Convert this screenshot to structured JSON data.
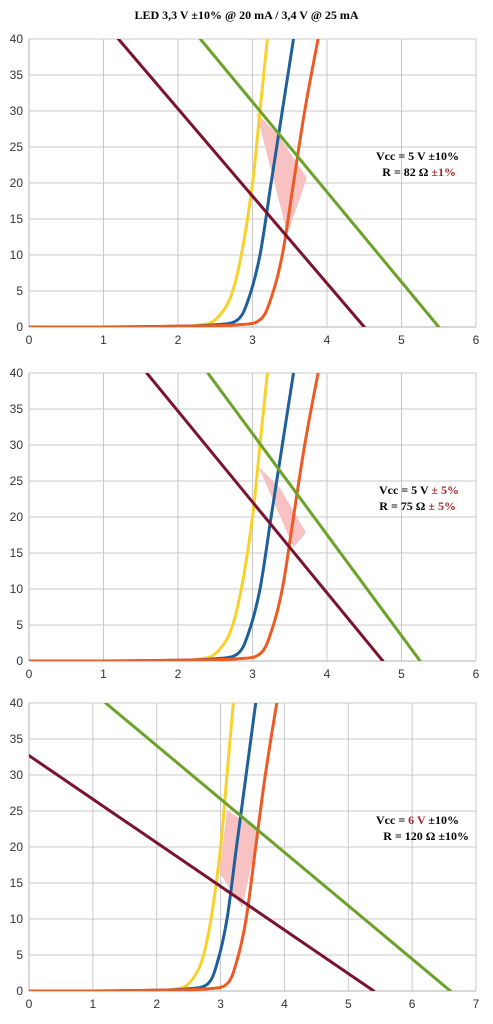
{
  "title": "LED 3,3 V ±10% @ 20 mA  /  3,4 V @ 25 mA",
  "colors": {
    "led_min": "#f7d22a",
    "led_nom": "#1f5f9a",
    "led_max": "#ee5a24",
    "load_low": "#7b1230",
    "load_high": "#6aa328",
    "fill": "#f8c2c2",
    "grid": "#c8c8c8",
    "highlight": "#a0282a"
  },
  "chart_data": [
    {
      "type": "line",
      "xlim": [
        0,
        6
      ],
      "ylim": [
        0,
        40
      ],
      "xticks": [
        "0",
        "1",
        "2",
        "3",
        "4",
        "5",
        "6"
      ],
      "yticks": [
        "0",
        "5",
        "10",
        "15",
        "20",
        "25",
        "30",
        "35",
        "40"
      ],
      "grid": true,
      "annotation": {
        "line1": {
          "prefix": "Vcc = 5 V ±10%",
          "highlight": ""
        },
        "line2": {
          "prefix": "R = 82 Ω ",
          "highlight": "±1%"
        }
      },
      "series": [
        {
          "role": "led_min",
          "x": [
            0,
            1,
            2,
            2.3,
            2.5,
            2.7,
            2.85,
            3.0,
            3.1,
            3.2
          ],
          "y": [
            0,
            0,
            0.1,
            0.3,
            1,
            4,
            10,
            20,
            30,
            40
          ]
        },
        {
          "role": "led_nom",
          "x": [
            0,
            1,
            2,
            2.5,
            2.8,
            2.95,
            3.1,
            3.25,
            3.4,
            3.55
          ],
          "y": [
            0,
            0,
            0.1,
            0.3,
            1,
            4,
            10,
            20,
            30,
            40
          ]
        },
        {
          "role": "led_max",
          "x": [
            0,
            1,
            2,
            2.8,
            3.1,
            3.25,
            3.4,
            3.55,
            3.7,
            3.88
          ],
          "y": [
            0,
            0,
            0.1,
            0.3,
            1,
            4,
            10,
            20,
            30,
            40
          ]
        },
        {
          "role": "load_low",
          "x": [
            1.2,
            4.5
          ],
          "y": [
            40,
            0
          ]
        },
        {
          "role": "load_high",
          "x": [
            2.3,
            5.5
          ],
          "y": [
            40,
            0
          ]
        }
      ],
      "region": {
        "x": [
          3.05,
          3.35,
          3.73,
          3.47
        ],
        "y": [
          29.8,
          26.6,
          20.7,
          12.9
        ]
      }
    },
    {
      "type": "line",
      "xlim": [
        0,
        6
      ],
      "ylim": [
        0,
        40
      ],
      "xticks": [
        "0",
        "1",
        "2",
        "3",
        "4",
        "5",
        "6"
      ],
      "yticks": [
        "0",
        "5",
        "10",
        "15",
        "20",
        "25",
        "30",
        "35",
        "40"
      ],
      "grid": true,
      "annotation": {
        "line1": {
          "prefix": "Vcc = 5 V ",
          "highlight": "± 5%"
        },
        "line2": {
          "prefix": "R = 75 Ω ",
          "highlight": "± 5%"
        }
      },
      "series": [
        {
          "role": "led_min",
          "x": [
            0,
            1,
            2,
            2.3,
            2.5,
            2.7,
            2.85,
            3.0,
            3.1,
            3.2
          ],
          "y": [
            0,
            0,
            0.1,
            0.3,
            1,
            4,
            10,
            20,
            30,
            40
          ]
        },
        {
          "role": "led_nom",
          "x": [
            0,
            1,
            2,
            2.5,
            2.8,
            2.95,
            3.1,
            3.25,
            3.4,
            3.55
          ],
          "y": [
            0,
            0,
            0.1,
            0.3,
            1,
            4,
            10,
            20,
            30,
            40
          ]
        },
        {
          "role": "led_max",
          "x": [
            0,
            1,
            2,
            2.8,
            3.1,
            3.25,
            3.4,
            3.55,
            3.7,
            3.88
          ],
          "y": [
            0,
            0,
            0.1,
            0.3,
            1,
            4,
            10,
            20,
            30,
            40
          ]
        },
        {
          "role": "load_low",
          "x": [
            1.58,
            4.75
          ],
          "y": [
            40,
            0
          ]
        },
        {
          "role": "load_high",
          "x": [
            2.4,
            5.25
          ],
          "y": [
            40,
            0
          ]
        }
      ],
      "region": {
        "x": [
          3.08,
          3.37,
          3.72,
          3.55
        ],
        "y": [
          27,
          24,
          17.8,
          15.8
        ]
      }
    },
    {
      "type": "line",
      "xlim": [
        0,
        7
      ],
      "ylim": [
        0,
        40
      ],
      "xticks": [
        "0",
        "1",
        "2",
        "3",
        "4",
        "5",
        "6",
        "7"
      ],
      "yticks": [
        "0",
        "5",
        "10",
        "15",
        "20",
        "25",
        "30",
        "35",
        "40"
      ],
      "grid": true,
      "annotation": {
        "line1": {
          "prefix": "Vcc = ",
          "highlight": "6 V",
          "suffix": " ±10%"
        },
        "line2": {
          "prefix": "R = 120 Ω ±10%",
          "highlight": ""
        }
      },
      "series": [
        {
          "role": "led_min",
          "x": [
            0,
            1,
            2,
            2.3,
            2.5,
            2.7,
            2.85,
            3.0,
            3.1,
            3.2
          ],
          "y": [
            0,
            0,
            0.1,
            0.3,
            1,
            4,
            10,
            20,
            30,
            40
          ]
        },
        {
          "role": "led_nom",
          "x": [
            0,
            1,
            2,
            2.5,
            2.8,
            2.95,
            3.1,
            3.25,
            3.4,
            3.55
          ],
          "y": [
            0,
            0,
            0.1,
            0.3,
            1,
            4,
            10,
            20,
            30,
            40
          ]
        },
        {
          "role": "led_max",
          "x": [
            0,
            1,
            2,
            2.8,
            3.1,
            3.25,
            3.4,
            3.55,
            3.7,
            3.88
          ],
          "y": [
            0,
            0,
            0.1,
            0.3,
            1,
            4,
            10,
            20,
            30,
            40
          ]
        },
        {
          "role": "load_low",
          "x": [
            0,
            5.4
          ],
          "y": [
            32.7,
            0
          ]
        },
        {
          "role": "load_high",
          "x": [
            1.2,
            6.6
          ],
          "y": [
            40,
            0
          ]
        }
      ],
      "region": {
        "x": [
          2.98,
          3.1,
          3.6,
          3.34
        ],
        "y": [
          16.5,
          25.1,
          22.3,
          11.6
        ]
      }
    }
  ]
}
